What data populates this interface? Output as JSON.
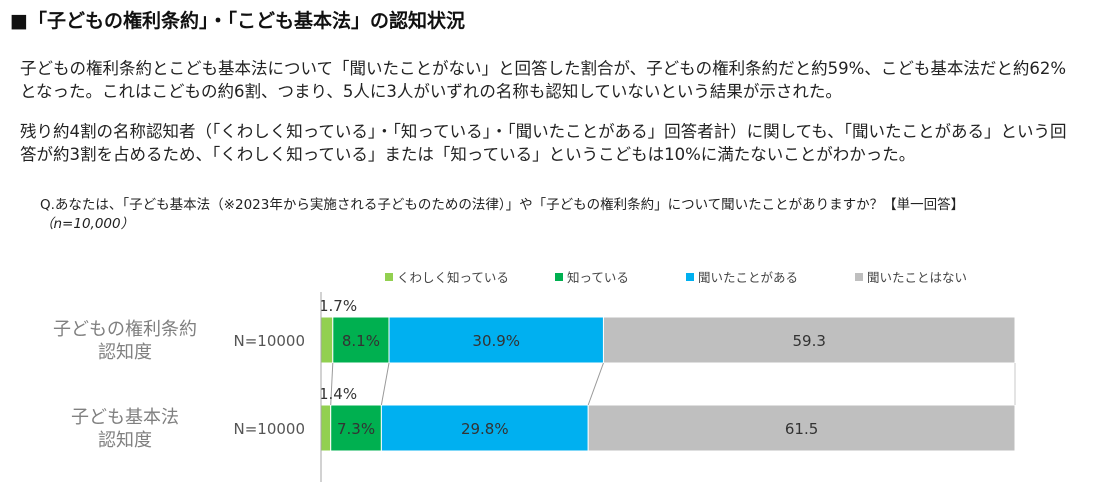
{
  "heading": "■「子どもの権利条約」・「こども基本法」の認知状況",
  "paragraphs": [
    "子どもの権利条約とこども基本法について「聞いたことがない」と回答した割合が、子どもの権利条約だと約59%、こども基本法だと約62%となった。これはこどもの約6割、つまり、5人に3人がいずれの名称も認知していないという結果が示された。",
    "残り約4割の名称認知者（「くわしく知っている」・「知っている」・「聞いたことがある」回答者計）に関しても、「聞いたことがある」という回答が約3割を占めるため、「くわしく知っている」または「知っている」というこどもは10%に満たないことがわかった。"
  ],
  "question": {
    "text": "Q.あなたは、「子ども基本法（※2023年から実施される子どものための法律）」や「子どもの権利条約」について聞いたことがありますか？【単一回答】",
    "n": "（n=10,000）"
  },
  "chart_data": {
    "type": "bar",
    "orientation": "horizontal",
    "stacked": true,
    "percent": true,
    "legend_position": "top",
    "categories": [
      "子どもの権利条約\n認知度",
      "子ども基本法\n認知度"
    ],
    "n_labels": [
      "N=10000",
      "N=10000"
    ],
    "series": [
      {
        "name": "くわしく知っている",
        "color": "#92d050",
        "values": [
          1.7,
          1.4
        ]
      },
      {
        "name": "知っている",
        "color": "#00b050",
        "values": [
          8.1,
          7.3
        ]
      },
      {
        "name": "聞いたことがある",
        "color": "#00b0f0",
        "values": [
          30.9,
          29.8
        ]
      },
      {
        "name": "聞いたことはない",
        "color": "#bfbfbf",
        "values": [
          59.3,
          61.5
        ]
      }
    ],
    "data_labels": [
      [
        "1.7%",
        "8.1%",
        "30.9%",
        "59.3"
      ],
      [
        "1.4%",
        "7.3%",
        "29.8%",
        "61.5"
      ]
    ],
    "xlim": [
      0,
      100
    ]
  }
}
